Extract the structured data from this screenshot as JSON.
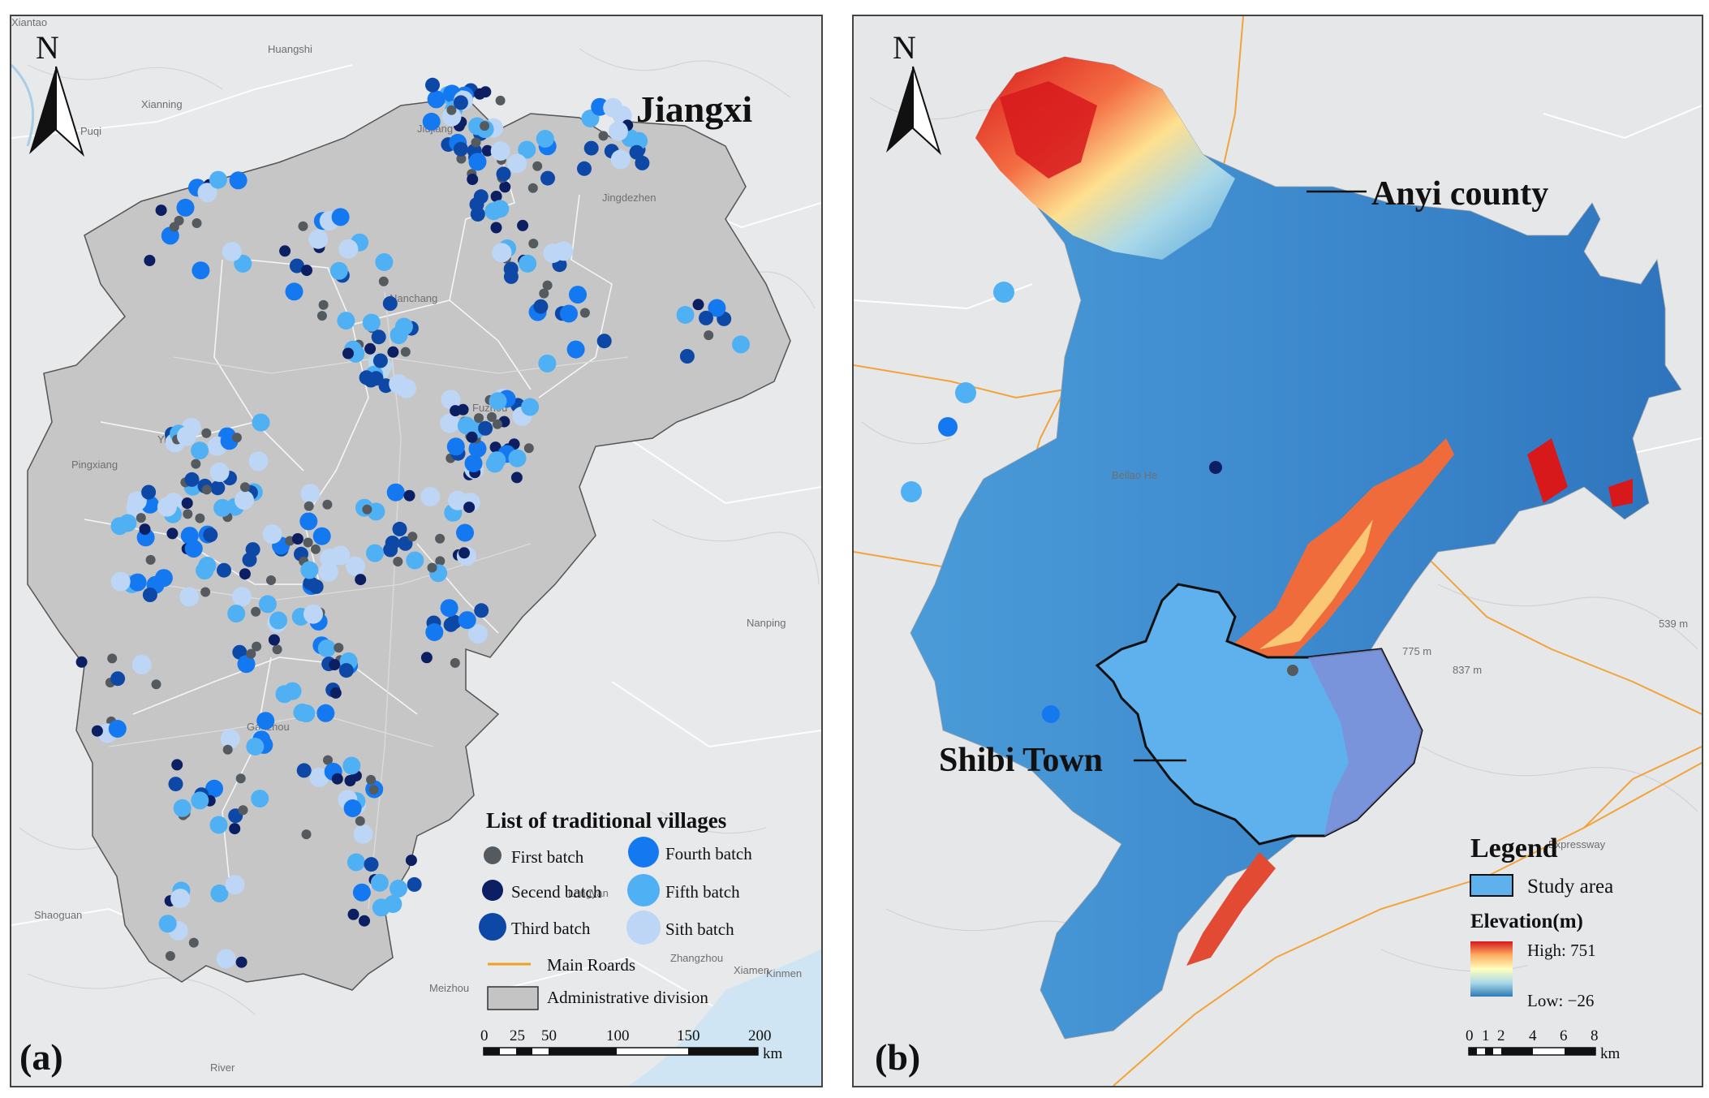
{
  "panel_a": {
    "title": "Jiangxi",
    "panel_label": "(a)",
    "north": "N",
    "cities": [
      {
        "name": "Xiantao"
      },
      {
        "name": "Huangshi"
      },
      {
        "name": "Xianning"
      },
      {
        "name": "Puqi"
      },
      {
        "name": "Jiujiang"
      },
      {
        "name": "Jingdezhen"
      },
      {
        "name": "Nanchang"
      },
      {
        "name": "Fuzhou"
      },
      {
        "name": "Yichun"
      },
      {
        "name": "Pingxiang"
      },
      {
        "name": "Ganzhou"
      },
      {
        "name": "Longyan"
      },
      {
        "name": "Shaoguan"
      },
      {
        "name": "Zhangzhou"
      },
      {
        "name": "Xiamen"
      },
      {
        "name": "Kinmen"
      },
      {
        "name": "Nanping"
      },
      {
        "name": "Meizhou"
      },
      {
        "name": "River"
      }
    ],
    "legend": {
      "title": "List of traditional villages",
      "items": [
        {
          "label": "First batch",
          "color": "#555a5f"
        },
        {
          "label": "Secend batch",
          "color": "#0c1f63"
        },
        {
          "label": "Third batch",
          "color": "#0d48a6"
        },
        {
          "label": "Fourth batch",
          "color": "#1478f0"
        },
        {
          "label": "Fifth batch",
          "color": "#4fb0f4"
        },
        {
          "label": "Sith batch",
          "color": "#bdd6f6"
        }
      ],
      "road_label": "Main Roards",
      "road_color": "#f0a020",
      "division_label": "Administrative division",
      "division_color": "#c4c4c4"
    },
    "scale": {
      "ticks": [
        "0",
        "25",
        "50",
        "100",
        "150",
        "200"
      ],
      "unit": "km"
    }
  },
  "panel_b": {
    "panel_label": "(b)",
    "north": "N",
    "county_label": "Anyi county",
    "town_label": "Shibi Town",
    "legend": {
      "title": "Legend",
      "study_area": "Study area",
      "elevation_title": "Elevation(m)",
      "high_label": "High: 751",
      "low_label": "Low: −26"
    },
    "map_labels": [
      {
        "text": "Beilao He"
      },
      {
        "text": "775 m"
      },
      {
        "text": "837 m"
      },
      {
        "text": "539 m"
      },
      {
        "text": "Expressway"
      }
    ],
    "scale": {
      "ticks": [
        "0",
        "1",
        "2",
        "4",
        "6",
        "8"
      ],
      "unit": "km"
    }
  }
}
